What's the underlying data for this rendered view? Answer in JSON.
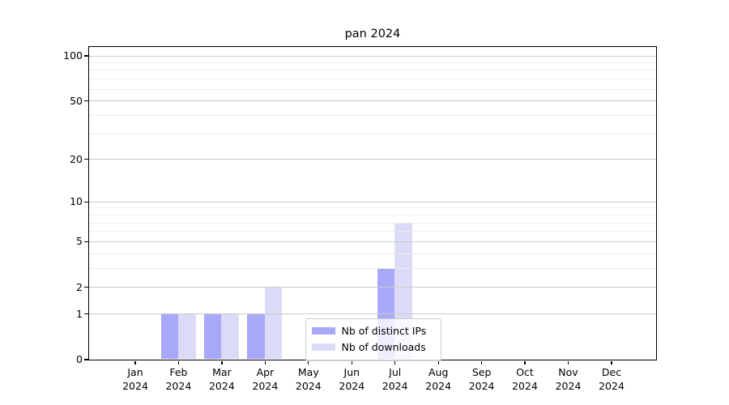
{
  "chart_data": {
    "type": "bar",
    "title": "pan 2024",
    "categories": [
      "Jan 2024",
      "Feb 2024",
      "Mar 2024",
      "Apr 2024",
      "May 2024",
      "Jun 2024",
      "Jul 2024",
      "Aug 2024",
      "Sep 2024",
      "Oct 2024",
      "Nov 2024",
      "Dec 2024"
    ],
    "x_tick_months": [
      "Jan",
      "Feb",
      "Mar",
      "Apr",
      "May",
      "Jun",
      "Jul",
      "Aug",
      "Sep",
      "Oct",
      "Nov",
      "Dec"
    ],
    "x_tick_year": "2024",
    "series": [
      {
        "name": "Nb of distinct IPs",
        "color": "#a8a8f8",
        "values": [
          0,
          1,
          1,
          1,
          0,
          0,
          3,
          0,
          0,
          0,
          0,
          0
        ]
      },
      {
        "name": "Nb of downloads",
        "color": "#dbdbf8",
        "values": [
          0,
          1,
          1,
          2,
          0,
          0,
          7,
          0,
          0,
          0,
          0,
          0
        ]
      }
    ],
    "y_axis": {
      "scale": "log1p",
      "major_ticks": [
        0,
        1,
        2,
        5,
        10,
        20,
        50,
        100
      ],
      "minor_gridlines": [
        3,
        4,
        6,
        7,
        8,
        9,
        30,
        40,
        60,
        70,
        80,
        90
      ]
    },
    "legend": {
      "position": "lower center",
      "entries": [
        "Nb of distinct IPs",
        "Nb of downloads"
      ]
    },
    "grid": true,
    "colors": {
      "bar_distinct_ips": "#a8a8f8",
      "bar_downloads": "#dbdbf8",
      "grid_major": "#cbcbcb",
      "grid_minor": "#ededed",
      "axis": "#000000",
      "background": "#ffffff"
    }
  }
}
